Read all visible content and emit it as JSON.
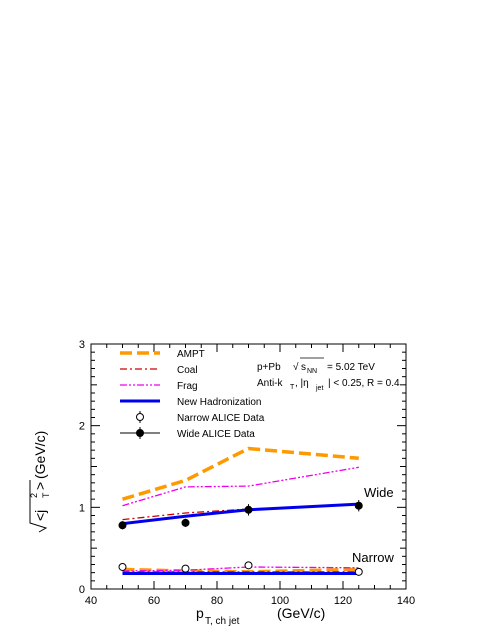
{
  "chart_data": {
    "type": "line",
    "title": "",
    "xlabel": "p",
    "xlabel_sub": "T, ch jet",
    "xlabel_unit": "(GeV/c)",
    "ylabel": "(GeV/c)",
    "ylabel_rad": "<j",
    "ylabel_sup": "2",
    "ylabel_sub": "T",
    "ylabel_close": ">",
    "xlim": [
      40,
      140
    ],
    "ylim": [
      0,
      3
    ],
    "x_ticks": [
      40,
      60,
      80,
      100,
      120,
      140
    ],
    "y_ticks": [
      0,
      1,
      2,
      3
    ],
    "annotations": {
      "collision": "p+Pb",
      "energy_sqrt": "s",
      "energy_sub": "NN",
      "energy_value": "= 5.02 TeV",
      "jet_algo": "Anti-k",
      "jet_algo_sub": "T",
      "eta_sep": ", |η",
      "eta_sub": "jet",
      "eta_cond": "| < 0.25,  R = 0.4",
      "wide": "Wide",
      "narrow": "Narrow"
    },
    "legend_position": "top-left",
    "legend": [
      {
        "name": "AMPT",
        "color": "#ff9900",
        "style": "dash"
      },
      {
        "name": "Coal",
        "color": "#cc0000",
        "style": "dashdot"
      },
      {
        "name": "Frag",
        "color": "#ee00ee",
        "style": "dashdotdot"
      },
      {
        "name": "New Hadronization",
        "color": "#0000ee",
        "style": "solid"
      },
      {
        "name": "Narrow ALICE Data",
        "color": "#000000",
        "style": "open-marker"
      },
      {
        "name": "Wide ALICE Data",
        "color": "#000000",
        "style": "filled-marker"
      }
    ],
    "series": [
      {
        "key": "ampt_wide",
        "legend": 0,
        "x": [
          50,
          70,
          90,
          125
        ],
        "y": [
          1.1,
          1.33,
          1.72,
          1.6
        ]
      },
      {
        "key": "coal_wide",
        "legend": 1,
        "x": [
          50,
          70,
          90,
          125
        ],
        "y": [
          0.85,
          0.93,
          0.98,
          1.04
        ]
      },
      {
        "key": "frag_wide",
        "legend": 2,
        "x": [
          50,
          70,
          90,
          125
        ],
        "y": [
          1.02,
          1.25,
          1.26,
          1.49
        ]
      },
      {
        "key": "newhad_wide",
        "legend": 3,
        "x": [
          50,
          70,
          90,
          125
        ],
        "y": [
          0.8,
          0.89,
          0.97,
          1.04
        ]
      },
      {
        "key": "ampt_narrow",
        "legend": 0,
        "x": [
          50,
          70,
          90,
          125
        ],
        "y": [
          0.24,
          0.22,
          0.21,
          0.24
        ]
      },
      {
        "key": "coal_narrow",
        "legend": 1,
        "x": [
          50,
          70,
          90,
          125
        ],
        "y": [
          0.21,
          0.21,
          0.21,
          0.21
        ]
      },
      {
        "key": "frag_narrow",
        "legend": 2,
        "x": [
          50,
          70,
          90,
          125
        ],
        "y": [
          0.22,
          0.23,
          0.27,
          0.26
        ]
      },
      {
        "key": "newhad_narrow",
        "legend": 3,
        "x": [
          50,
          70,
          90,
          125
        ],
        "y": [
          0.19,
          0.19,
          0.19,
          0.19
        ]
      }
    ],
    "data_points": [
      {
        "key": "narrow_data",
        "legend": 4,
        "filled": false,
        "x": [
          50,
          70,
          90,
          125
        ],
        "y": [
          0.27,
          0.25,
          0.29,
          0.21
        ],
        "err": [
          0.02,
          0.02,
          0.02,
          0.02
        ]
      },
      {
        "key": "wide_data",
        "legend": 5,
        "filled": true,
        "x": [
          50,
          70,
          90,
          125
        ],
        "y": [
          0.78,
          0.81,
          0.97,
          1.02
        ],
        "err": [
          0.05,
          0.05,
          0.07,
          0.07
        ]
      }
    ]
  }
}
